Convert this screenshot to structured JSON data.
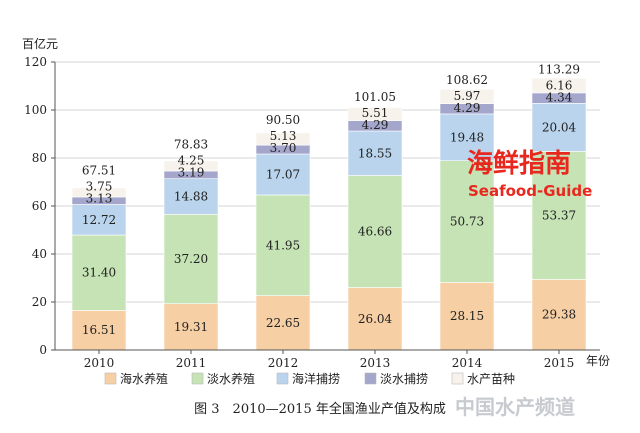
{
  "chart_data": {
    "type": "bar",
    "stacked": true,
    "categories": [
      "2010",
      "2011",
      "2012",
      "2013",
      "2014",
      "2015"
    ],
    "series": [
      {
        "name": "海水养殖",
        "color": "#f6cfa4",
        "values": [
          16.51,
          19.31,
          22.65,
          26.04,
          28.15,
          29.38
        ]
      },
      {
        "name": "淡水养殖",
        "color": "#c5e3b5",
        "values": [
          31.4,
          37.2,
          41.95,
          46.66,
          50.73,
          53.37
        ]
      },
      {
        "name": "海洋捕捞",
        "color": "#b9d4ec",
        "values": [
          12.72,
          14.88,
          17.07,
          18.55,
          19.48,
          20.04
        ]
      },
      {
        "name": "淡水捕捞",
        "color": "#a4a6cc",
        "values": [
          3.13,
          3.19,
          3.7,
          4.29,
          4.29,
          4.34
        ]
      },
      {
        "name": "水产苗种",
        "color": "#f7f3ec",
        "values": [
          3.75,
          4.25,
          5.13,
          5.51,
          5.97,
          6.16
        ]
      }
    ],
    "value_labels": [
      [
        "16.51",
        "19.31",
        "22.65",
        "26.04",
        "28.15",
        "29.38"
      ],
      [
        "31.40",
        "37.20",
        "41.95",
        "46.66",
        "50.73",
        "53.37"
      ],
      [
        "12.72",
        "14.88",
        "17.07",
        "18.55",
        "19.48",
        "20.04"
      ],
      [
        "3.13",
        "3.19",
        "3.70",
        "4.29",
        "4.29",
        "4.34"
      ],
      [
        "3.75",
        "4.25",
        "5.13",
        "5.51",
        "5.97",
        "6.16"
      ]
    ],
    "totals": [
      "67.51",
      "78.83",
      "90.50",
      "101.05",
      "108.62",
      "113.29"
    ],
    "yticks": [
      "0",
      "20",
      "40",
      "60",
      "80",
      "100",
      "120"
    ],
    "ylim": [
      0,
      120
    ],
    "ylabel": "百亿元",
    "xlabel": "年份",
    "grid": true,
    "legend_position": "bottom",
    "caption": "图 3　2010—2015 年全国渔业产值及构成"
  },
  "watermark": {
    "brand_cn": "海鲜指南",
    "brand_en": "Seafood-Guide",
    "site": "中国水产频道"
  }
}
